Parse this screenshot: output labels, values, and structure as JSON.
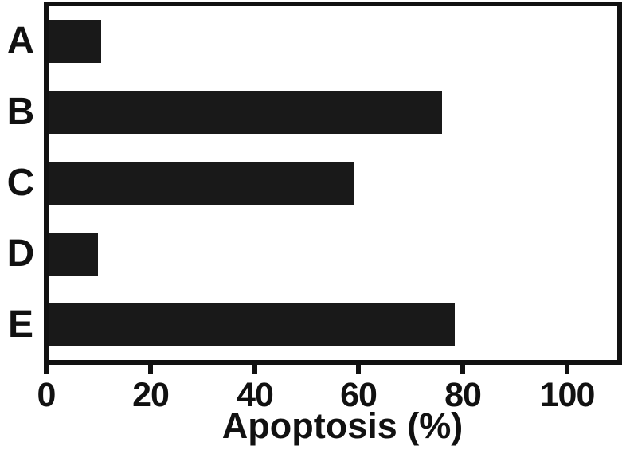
{
  "chart_data": {
    "type": "bar",
    "orientation": "horizontal",
    "title": "",
    "xlabel": "Apoptosis (%)",
    "ylabel": "",
    "categories": [
      "A",
      "B",
      "C",
      "D",
      "E"
    ],
    "values": [
      10.5,
      76,
      59,
      10,
      78.5
    ],
    "xlim": [
      0,
      110
    ],
    "xticks": [
      0,
      20,
      40,
      60,
      80,
      100
    ],
    "grid": false,
    "legend": "none",
    "bar_color": "#191919",
    "axis_color": "#111111",
    "background_color": "#ffffff"
  }
}
